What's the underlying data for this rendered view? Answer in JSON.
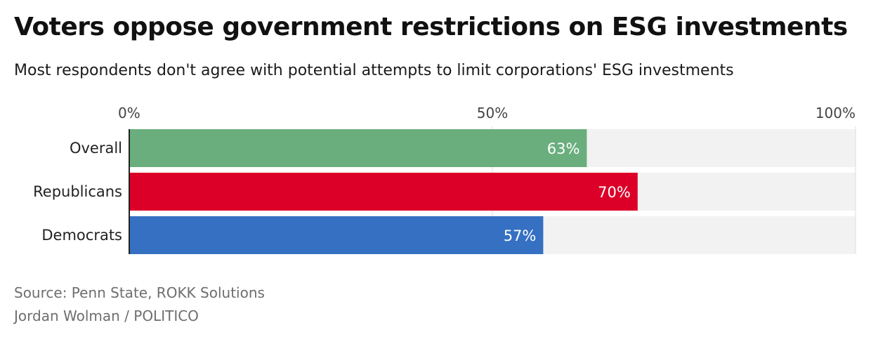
{
  "header": {
    "title": "Voters oppose government restrictions on ESG investments",
    "subtitle": "Most respondents don't agree with potential attempts to limit corporations' ESG investments"
  },
  "footer": {
    "source": "Source: Penn State, ROKK Solutions",
    "credit": "Jordan Wolman / POLITICO"
  },
  "chart_data": {
    "type": "bar",
    "orientation": "horizontal",
    "title": "Voters oppose government restrictions on ESG investments",
    "subtitle": "Most respondents don't agree with potential attempts to limit corporations' ESG investments",
    "categories": [
      "Overall",
      "Republicans",
      "Democrats"
    ],
    "values": [
      63,
      70,
      57
    ],
    "value_labels": [
      "63%",
      "70%",
      "57%"
    ],
    "colors": [
      "#6aae7e",
      "#dc0029",
      "#3570c3"
    ],
    "track_color": "#f2f2f2",
    "xlim": [
      0,
      100
    ],
    "x_ticks": [
      0,
      50,
      100
    ],
    "x_tick_labels": [
      "0%",
      "50%",
      "100%"
    ],
    "xlabel": "",
    "ylabel": "",
    "grid": true,
    "legend": "none"
  }
}
